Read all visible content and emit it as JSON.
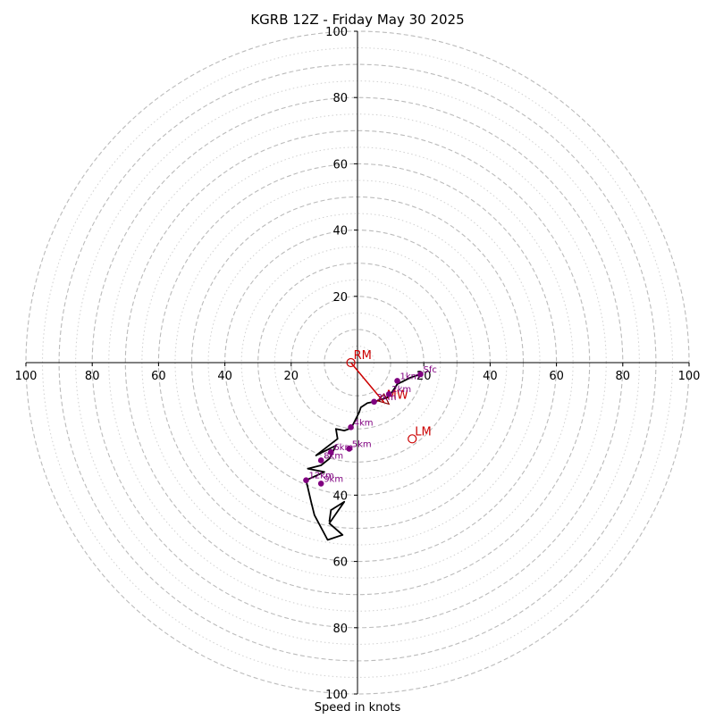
{
  "chart_data": {
    "type": "hodograph",
    "title": "KGRB 12Z - Friday May 30 2025",
    "xlabel": "Speed in knots",
    "axis_range": [
      -100,
      100
    ],
    "ring_speeds_dashed": [
      10,
      20,
      30,
      40,
      50,
      60,
      70,
      80,
      90,
      100
    ],
    "ring_speeds_dotted": [
      5,
      15,
      25,
      35,
      45,
      55,
      65,
      75,
      85,
      95
    ],
    "tick_labels_x": [
      "100",
      "80",
      "60",
      "40",
      "20",
      "20",
      "40",
      "60",
      "80",
      "100"
    ],
    "tick_values_x": [
      -100,
      -80,
      -60,
      -40,
      -20,
      20,
      40,
      60,
      80,
      100
    ],
    "tick_labels_y": [
      "100",
      "80",
      "60",
      "40",
      "20",
      "40",
      "60",
      "80",
      "100"
    ],
    "tick_values_y": [
      100,
      80,
      60,
      40,
      20,
      -40,
      -60,
      -80,
      -100
    ],
    "wind_trace": [
      [
        19,
        -3.5
      ],
      [
        16,
        -4.5
      ],
      [
        14,
        -5.5
      ],
      [
        12,
        -6.5
      ],
      [
        11,
        -8
      ],
      [
        10,
        -9.5
      ],
      [
        9,
        -10.5
      ],
      [
        7.5,
        -11
      ],
      [
        6,
        -11.5
      ],
      [
        5,
        -11.8
      ],
      [
        3,
        -12.2
      ],
      [
        1,
        -13.5
      ],
      [
        0.5,
        -15
      ],
      [
        -0.5,
        -17
      ],
      [
        -1.5,
        -19
      ],
      [
        -2.5,
        -20
      ],
      [
        -4,
        -20.5
      ],
      [
        -6.5,
        -20
      ],
      [
        -6,
        -23
      ],
      [
        -12.5,
        -28
      ],
      [
        -6.5,
        -25
      ],
      [
        -8.5,
        -29
      ],
      [
        -11,
        -31
      ],
      [
        -15,
        -32
      ],
      [
        -10,
        -33
      ],
      [
        -15.5,
        -35.5
      ],
      [
        -14,
        -42
      ],
      [
        -13,
        -46
      ],
      [
        -9,
        -53.5
      ],
      [
        -4.5,
        -52
      ],
      [
        -8.5,
        -48.5
      ],
      [
        -4,
        -42
      ],
      [
        -8,
        -44.5
      ],
      [
        -8.5,
        -48
      ]
    ],
    "storm_box": [
      [
        8,
        -9.5
      ],
      [
        9.5,
        -12.5
      ],
      [
        6,
        -11.5
      ]
    ],
    "height_markers": [
      {
        "label": "Sfc",
        "u": 19,
        "v": -3.5
      },
      {
        "label": "1km",
        "u": 12,
        "v": -5.5
      },
      {
        "label": "2km",
        "u": 9.5,
        "v": -9.5
      },
      {
        "label": "3km",
        "u": 5,
        "v": -11.8
      },
      {
        "label": "4km",
        "u": -2,
        "v": -19.5
      },
      {
        "label": "5km",
        "u": -2.5,
        "v": -26
      },
      {
        "label": "6km",
        "u": -8,
        "v": -27
      },
      {
        "label": "8km",
        "u": -11,
        "v": -29.5
      },
      {
        "label": "9km",
        "u": -11,
        "v": -36.5
      },
      {
        "label": "12km",
        "u": -15.5,
        "v": -35.5
      }
    ],
    "storm_motion": [
      {
        "label": "RM",
        "u": -2,
        "v": 0
      },
      {
        "label": "LM",
        "u": 16.5,
        "v": -23
      },
      {
        "label": "MW",
        "u": 8,
        "v": -12
      }
    ],
    "shear_vector_from": "RM",
    "colors": {
      "trace": "#000000",
      "markers": "#800080",
      "storm_motion": "#cc0000",
      "rings": "#bbbbbb"
    }
  }
}
